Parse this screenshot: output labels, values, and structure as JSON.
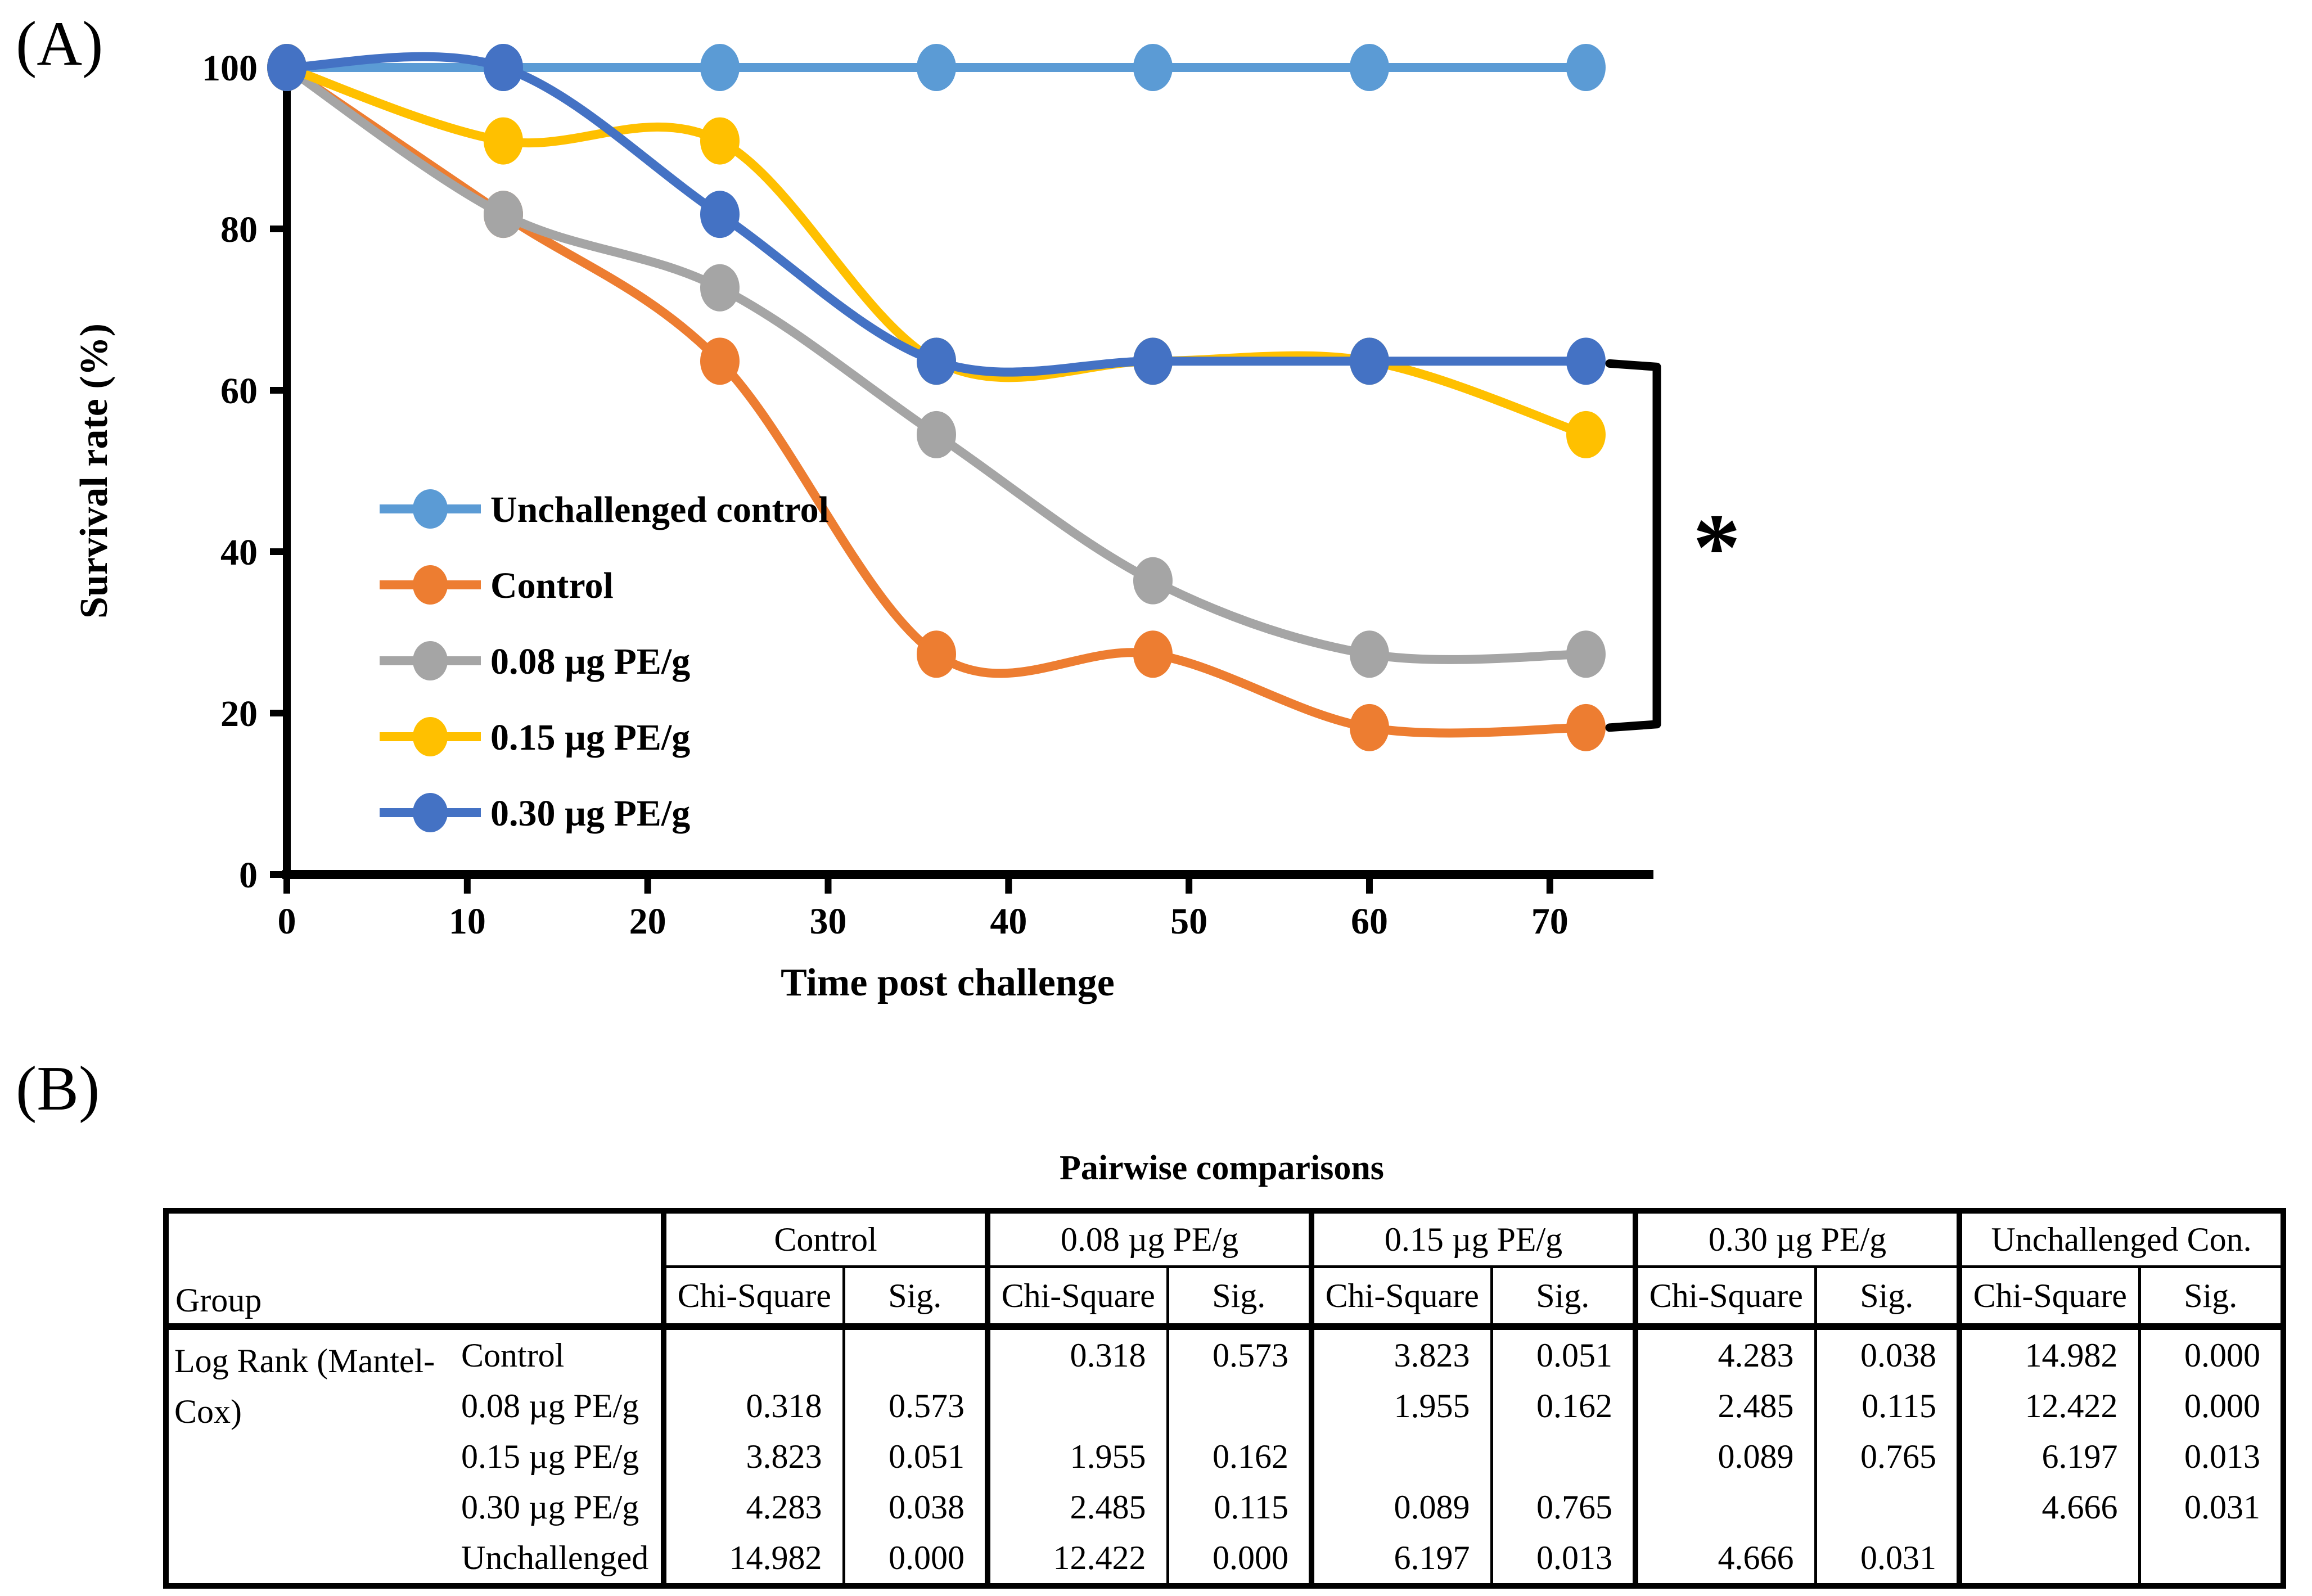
{
  "figure": {
    "panel_a_label": "(A)",
    "panel_b_label": "(B)"
  },
  "chart_data": {
    "type": "line",
    "x": [
      0,
      12,
      24,
      36,
      48,
      60,
      72
    ],
    "xlabel": "Time post challenge",
    "ylabel": "Survival rate (%)",
    "xticks": [
      0,
      10,
      20,
      30,
      40,
      50,
      60,
      70
    ],
    "yticks": [
      0,
      20,
      40,
      60,
      80,
      100
    ],
    "xlim": [
      0,
      75
    ],
    "ylim": [
      0,
      100
    ],
    "grid": false,
    "legend_position": "inside-left",
    "marker": "circle",
    "line_style": "smooth",
    "series": [
      {
        "name": "Unchallenged control",
        "color": "#5B9BD5",
        "values": [
          100,
          100,
          100,
          100,
          100,
          100,
          100
        ]
      },
      {
        "name": "Control",
        "color": "#ED7D31",
        "values": [
          100,
          81.8,
          63.6,
          27.3,
          27.3,
          18.2,
          18.2
        ]
      },
      {
        "name": "0.08 µg PE/g",
        "color": "#A5A5A5",
        "values": [
          100,
          81.8,
          72.7,
          54.5,
          36.4,
          27.3,
          27.3
        ]
      },
      {
        "name": "0.15 µg PE/g",
        "color": "#FFC000",
        "values": [
          100,
          90.9,
          90.9,
          63.6,
          63.6,
          63.6,
          54.5
        ]
      },
      {
        "name": "0.30 µg PE/g",
        "color": "#4472C4",
        "values": [
          100,
          100,
          81.8,
          63.6,
          63.6,
          63.6,
          63.6
        ]
      }
    ],
    "annotation": {
      "symbol": "*",
      "bracket_color": "#000000"
    }
  },
  "table": {
    "title": "Pairwise comparisons",
    "group_col_header": "Group",
    "row_header": "Log Rank (Mantel-Cox)",
    "col_groups": [
      "Control",
      "0.08 µg PE/g",
      "0.15 µg PE/g",
      "0.30 µg PE/g",
      "Unchallenged Con."
    ],
    "sub_headers": [
      "Chi-Square",
      "Sig."
    ],
    "rows": [
      {
        "label": "Control",
        "cells": [
          "",
          "",
          "0.318",
          "0.573",
          "3.823",
          "0.051",
          "4.283",
          "0.038",
          "14.982",
          "0.000"
        ]
      },
      {
        "label": "0.08 µg PE/g",
        "cells": [
          "0.318",
          "0.573",
          "",
          "",
          "1.955",
          "0.162",
          "2.485",
          "0.115",
          "12.422",
          "0.000"
        ]
      },
      {
        "label": "0.15 µg PE/g",
        "cells": [
          "3.823",
          "0.051",
          "1.955",
          "0.162",
          "",
          "",
          "0.089",
          "0.765",
          "6.197",
          "0.013"
        ]
      },
      {
        "label": "0.30 µg PE/g",
        "cells": [
          "4.283",
          "0.038",
          "2.485",
          "0.115",
          "0.089",
          "0.765",
          "",
          "",
          "4.666",
          "0.031"
        ]
      },
      {
        "label": "Unchallenged",
        "cells": [
          "14.982",
          "0.000",
          "12.422",
          "0.000",
          "6.197",
          "0.013",
          "4.666",
          "0.031",
          "",
          ""
        ]
      }
    ]
  }
}
